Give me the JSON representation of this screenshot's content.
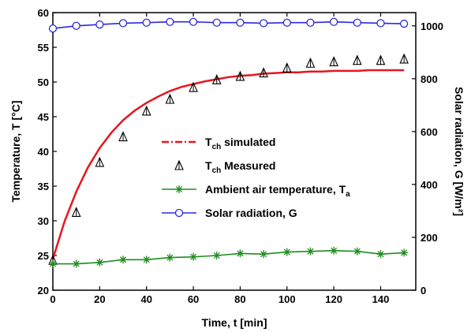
{
  "chart_data": {
    "type": "line",
    "xlabel": "Time, t [min]",
    "ylabel": "Temperature, T [°C]",
    "y2label": "Solar radiation, G [W/m²]",
    "xlim": [
      0,
      155
    ],
    "ylim": [
      20,
      60
    ],
    "y2lim": [
      0,
      1050
    ],
    "xticks": [
      "0",
      "20",
      "40",
      "60",
      "80",
      "100",
      "120",
      "140"
    ],
    "yticks": [
      "20",
      "25",
      "30",
      "35",
      "40",
      "45",
      "50",
      "55",
      "60"
    ],
    "y2ticks": [
      "0",
      "200",
      "400",
      "600",
      "800",
      "1000"
    ],
    "legend_position": "center-right",
    "series": [
      {
        "name": "T_ch simulated",
        "label_main": "T",
        "label_sub": "ch",
        "label_rest": " simulated",
        "axis": "left",
        "marker": "none",
        "line": "solid",
        "legend_line": "dashdot",
        "color": "#e8141e",
        "x": [
          0,
          5,
          10,
          15,
          20,
          25,
          30,
          35,
          40,
          45,
          50,
          55,
          60,
          65,
          70,
          75,
          80,
          85,
          90,
          95,
          100,
          105,
          110,
          115,
          120,
          125,
          130,
          135,
          140,
          145,
          150
        ],
        "y": [
          24.5,
          29.9,
          34.2,
          37.7,
          40.5,
          42.7,
          44.5,
          45.9,
          47.0,
          47.9,
          48.7,
          49.3,
          49.7,
          50.1,
          50.4,
          50.7,
          50.9,
          51.0,
          51.2,
          51.3,
          51.4,
          51.4,
          51.5,
          51.5,
          51.6,
          51.6,
          51.6,
          51.7,
          51.7,
          51.7,
          51.7
        ]
      },
      {
        "name": "T_ch Measured",
        "label_main": "T",
        "label_sub": "ch",
        "label_rest": " Measured",
        "axis": "left",
        "marker": "triangle",
        "line": "none",
        "color": "#000000",
        "x": [
          0,
          10,
          20,
          30,
          40,
          50,
          60,
          70,
          80,
          90,
          100,
          110,
          120,
          130,
          140,
          150
        ],
        "y": [
          24.3,
          31.2,
          38.4,
          42.1,
          45.8,
          47.5,
          49.2,
          50.3,
          50.8,
          51.3,
          52.0,
          52.7,
          52.9,
          53.1,
          53.1,
          53.3
        ]
      },
      {
        "name": "Ambient air temperature, T_a",
        "label_main": "Ambient air temperature, T",
        "label_sub": "a",
        "label_rest": "",
        "axis": "left",
        "marker": "asterisk",
        "line": "solid",
        "color": "#1e8c1e",
        "x": [
          0,
          10,
          20,
          30,
          40,
          50,
          60,
          70,
          80,
          90,
          100,
          110,
          120,
          130,
          140,
          150
        ],
        "y": [
          23.8,
          23.8,
          24.0,
          24.4,
          24.4,
          24.7,
          24.8,
          25.0,
          25.3,
          25.2,
          25.5,
          25.6,
          25.7,
          25.6,
          25.2,
          25.4
        ]
      },
      {
        "name": "Solar radiation, G",
        "label_main": "Solar radiation, G",
        "label_sub": "",
        "label_rest": "",
        "axis": "right",
        "marker": "circle",
        "line": "solid",
        "color": "#2a2ae0",
        "x": [
          0,
          10,
          20,
          30,
          40,
          50,
          60,
          70,
          80,
          90,
          100,
          110,
          120,
          130,
          140,
          150
        ],
        "y": [
          990,
          1000,
          1005,
          1010,
          1012,
          1015,
          1015,
          1012,
          1012,
          1010,
          1012,
          1012,
          1015,
          1012,
          1010,
          1008
        ]
      }
    ]
  }
}
